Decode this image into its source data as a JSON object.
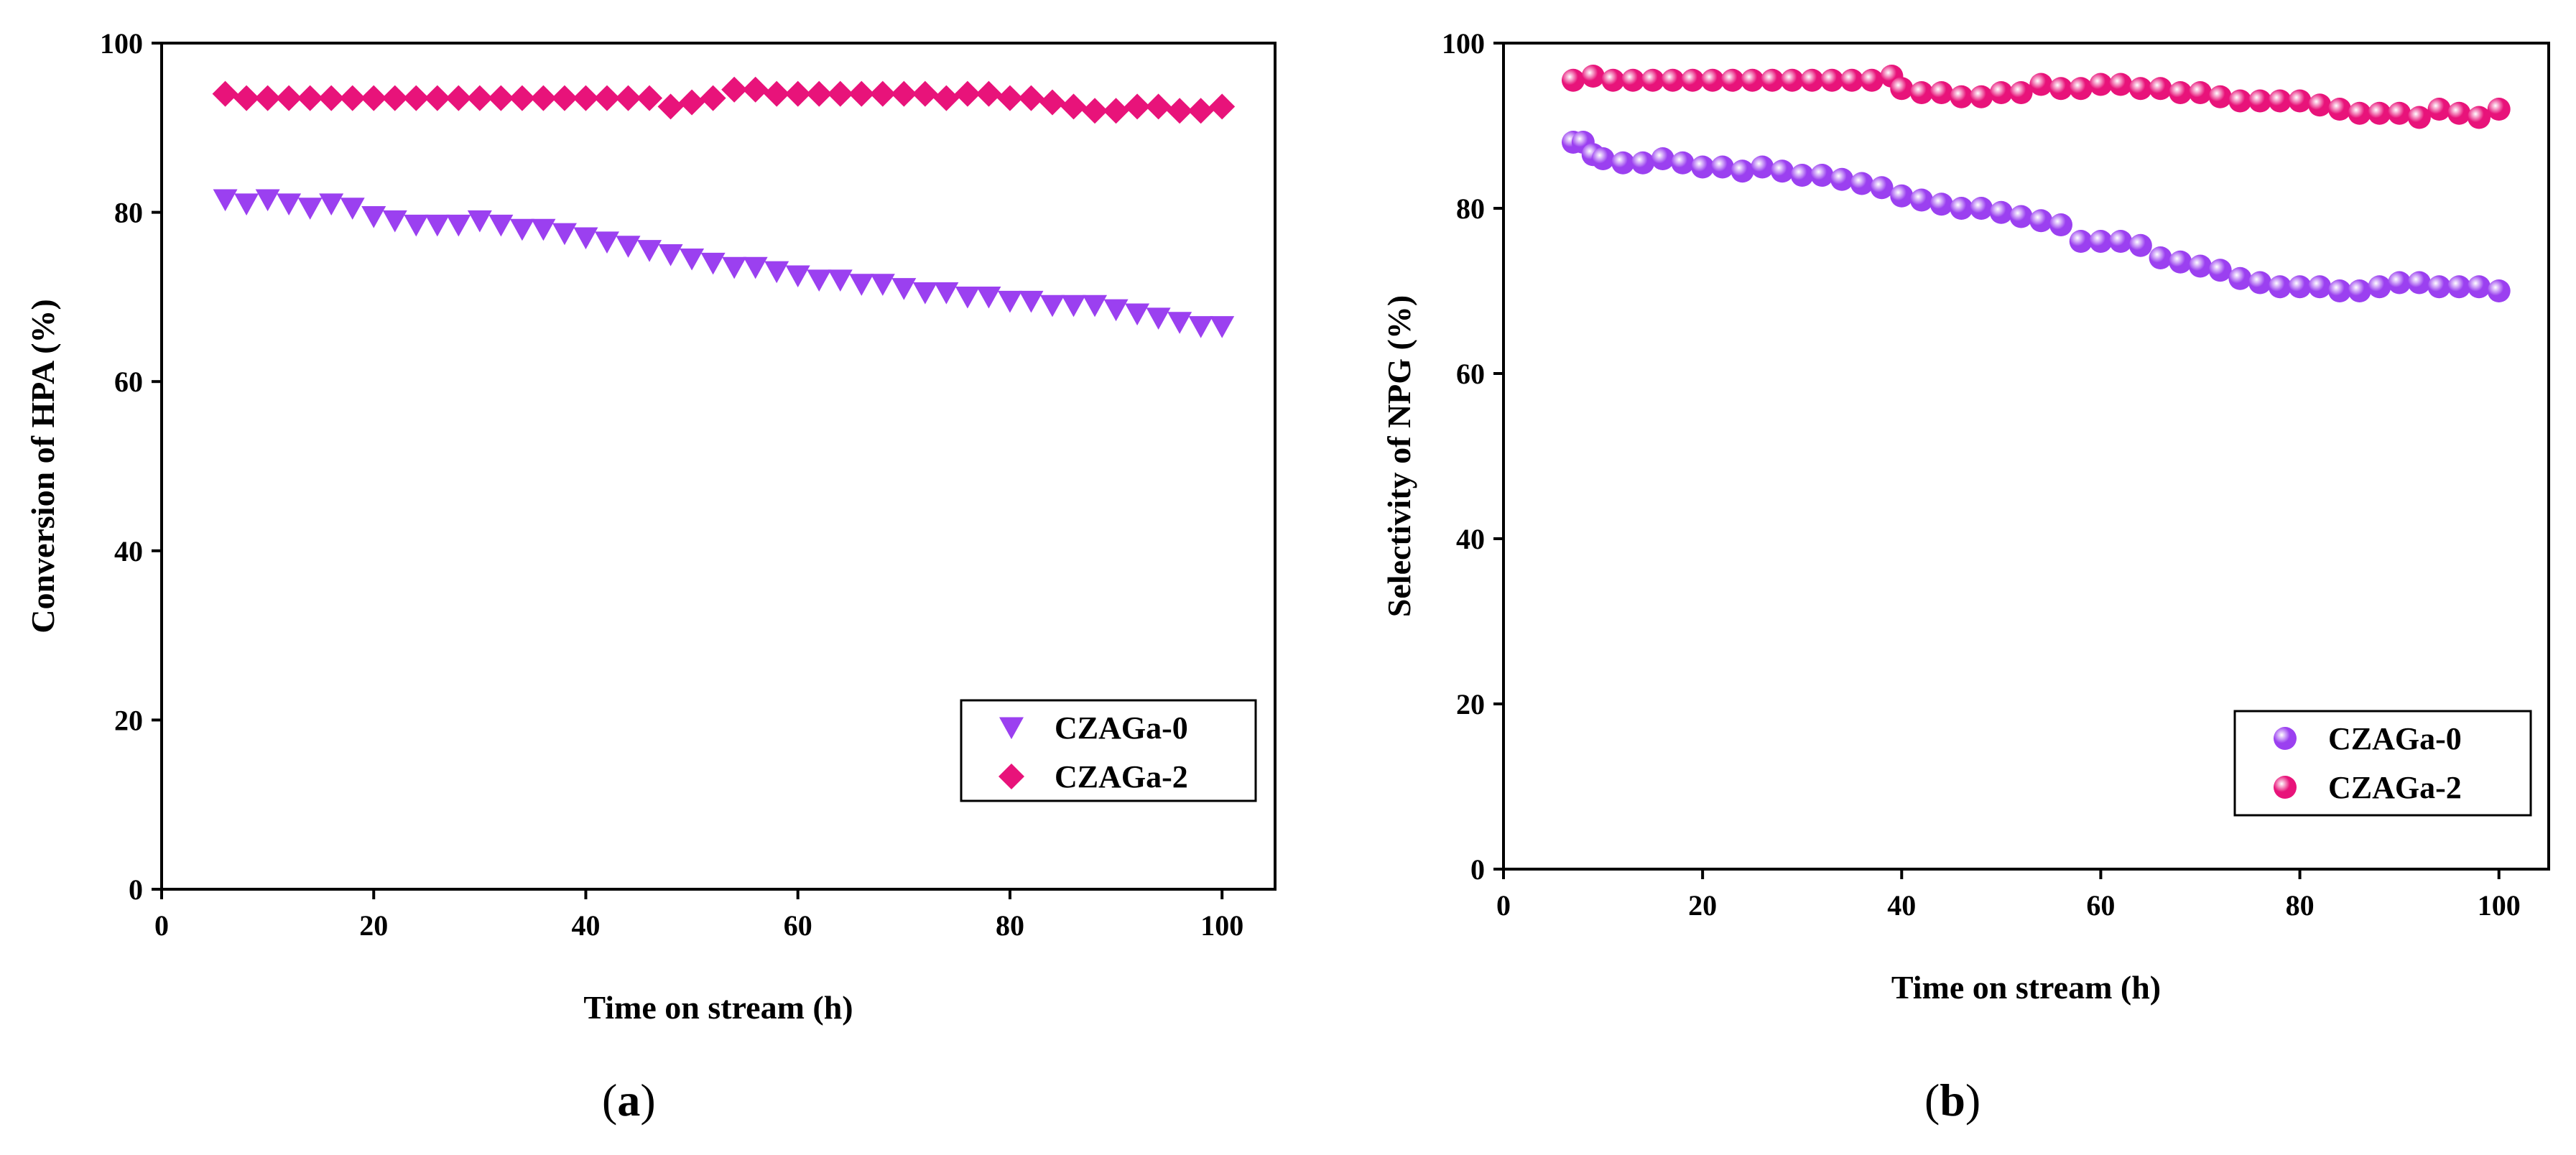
{
  "chart_data": [
    {
      "id": "a",
      "type": "scatter",
      "caption_letter": "a",
      "xlabel": "Time on stream (h)",
      "ylabel": "Conversion of HPA (%)",
      "xlim": [
        0,
        105
      ],
      "ylim": [
        0,
        100
      ],
      "xticks": [
        0,
        20,
        40,
        60,
        80,
        100
      ],
      "yticks": [
        0,
        20,
        40,
        60,
        80,
        100
      ],
      "legend_position": "lower-right",
      "series": [
        {
          "name": "CZAGa-0",
          "marker": "triangle-down",
          "color": "#9b40f0",
          "x": [
            6,
            8,
            10,
            12,
            14,
            16,
            18,
            20,
            22,
            24,
            26,
            28,
            30,
            32,
            34,
            36,
            38,
            40,
            42,
            44,
            46,
            48,
            50,
            52,
            54,
            56,
            58,
            60,
            62,
            64,
            66,
            68,
            70,
            72,
            74,
            76,
            78,
            80,
            82,
            84,
            86,
            88,
            90,
            92,
            94,
            96,
            98,
            100
          ],
          "y": [
            81.5,
            81,
            81.5,
            81,
            80.5,
            81,
            80.5,
            79.5,
            79,
            78.5,
            78.5,
            78.5,
            79,
            78.5,
            78,
            78,
            77.5,
            77,
            76.5,
            76,
            75.5,
            75,
            74.5,
            74,
            73.5,
            73.5,
            73,
            72.5,
            72,
            72,
            71.5,
            71.5,
            71,
            70.5,
            70.5,
            70,
            70,
            69.5,
            69.5,
            69,
            69,
            69,
            68.5,
            68,
            67.5,
            67,
            66.5,
            66.5
          ]
        },
        {
          "name": "CZAGa-2",
          "marker": "diamond",
          "color": "#e8137a",
          "x": [
            6,
            8,
            10,
            12,
            14,
            16,
            18,
            20,
            22,
            24,
            26,
            28,
            30,
            32,
            34,
            36,
            38,
            40,
            42,
            44,
            46,
            48,
            50,
            52,
            54,
            56,
            58,
            60,
            62,
            64,
            66,
            68,
            70,
            72,
            74,
            76,
            78,
            80,
            82,
            84,
            86,
            88,
            90,
            92,
            94,
            96,
            98,
            100
          ],
          "y": [
            94,
            93.5,
            93.5,
            93.5,
            93.5,
            93.5,
            93.5,
            93.5,
            93.5,
            93.5,
            93.5,
            93.5,
            93.5,
            93.5,
            93.5,
            93.5,
            93.5,
            93.5,
            93.5,
            93.5,
            93.5,
            92.5,
            93,
            93.5,
            94.5,
            94.5,
            94,
            94,
            94,
            94,
            94,
            94,
            94,
            94,
            93.5,
            94,
            94,
            93.5,
            93.5,
            93,
            92.5,
            92,
            92,
            92.5,
            92.5,
            92,
            92,
            92.5
          ]
        }
      ]
    },
    {
      "id": "b",
      "type": "scatter",
      "caption_letter": "b",
      "xlabel": "Time on stream (h)",
      "ylabel": "Selectivity of NPG (%)",
      "xlim": [
        0,
        105
      ],
      "ylim": [
        0,
        100
      ],
      "xticks": [
        0,
        20,
        40,
        60,
        80,
        100
      ],
      "yticks": [
        0,
        20,
        40,
        60,
        80,
        100
      ],
      "legend_position": "lower-right",
      "series": [
        {
          "name": "CZAGa-0",
          "marker": "sphere",
          "color": "#9b40f0",
          "x": [
            7,
            8,
            9,
            10,
            12,
            14,
            16,
            18,
            20,
            22,
            24,
            26,
            28,
            30,
            32,
            34,
            36,
            38,
            40,
            42,
            44,
            46,
            48,
            50,
            52,
            54,
            56,
            58,
            60,
            62,
            64,
            66,
            68,
            70,
            72,
            74,
            76,
            78,
            80,
            82,
            84,
            86,
            88,
            90,
            92,
            94,
            96,
            98,
            100
          ],
          "y": [
            88,
            88,
            86.5,
            86,
            85.5,
            85.5,
            86,
            85.5,
            85,
            85,
            84.5,
            85,
            84.5,
            84,
            84,
            83.5,
            83,
            82.5,
            81.5,
            81,
            80.5,
            80,
            80,
            79.5,
            79,
            78.5,
            78,
            76,
            76,
            76,
            75.5,
            74,
            73.5,
            73,
            72.5,
            71.5,
            71,
            70.5,
            70.5,
            70.5,
            70,
            70,
            70.5,
            71,
            71,
            70.5,
            70.5,
            70.5,
            70
          ]
        },
        {
          "name": "CZAGa-2",
          "marker": "sphere",
          "color": "#e8137a",
          "x": [
            7,
            9,
            11,
            13,
            15,
            17,
            19,
            21,
            23,
            25,
            27,
            29,
            31,
            33,
            35,
            37,
            39,
            40,
            42,
            44,
            46,
            48,
            50,
            52,
            54,
            56,
            58,
            60,
            62,
            64,
            66,
            68,
            70,
            72,
            74,
            76,
            78,
            80,
            82,
            84,
            86,
            88,
            90,
            92,
            94,
            96,
            98,
            100
          ],
          "y": [
            95.5,
            96,
            95.5,
            95.5,
            95.5,
            95.5,
            95.5,
            95.5,
            95.5,
            95.5,
            95.5,
            95.5,
            95.5,
            95.5,
            95.5,
            95.5,
            96,
            94.5,
            94,
            94,
            93.5,
            93.5,
            94,
            94,
            95,
            94.5,
            94.5,
            95,
            95,
            94.5,
            94.5,
            94,
            94,
            93.5,
            93,
            93,
            93,
            93,
            92.5,
            92,
            91.5,
            91.5,
            91.5,
            91,
            92,
            91.5,
            91,
            92
          ]
        }
      ]
    }
  ]
}
